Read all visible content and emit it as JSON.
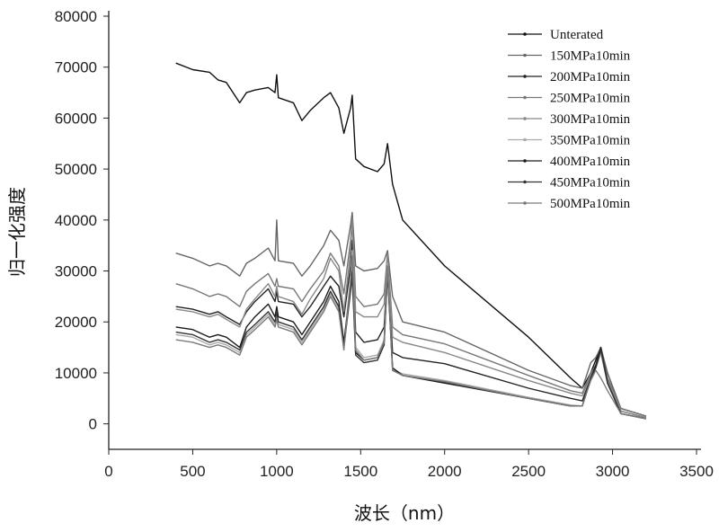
{
  "chart_data": {
    "type": "line",
    "title": "",
    "xlabel": "波长（nm）",
    "ylabel": "归一化强度",
    "xlim": [
      0,
      3500
    ],
    "ylim": [
      -5000,
      80000
    ],
    "xticks": [
      0,
      500,
      1000,
      1500,
      2000,
      2500,
      3000,
      3500
    ],
    "yticks": [
      0,
      10000,
      20000,
      30000,
      40000,
      50000,
      60000,
      70000,
      80000
    ],
    "grid": false,
    "legend_position": "top-right",
    "x": [
      400,
      500,
      600,
      650,
      700,
      780,
      820,
      870,
      950,
      990,
      1000,
      1010,
      1100,
      1150,
      1200,
      1280,
      1320,
      1370,
      1400,
      1440,
      1450,
      1470,
      1520,
      1600,
      1640,
      1660,
      1690,
      1750,
      2000,
      2500,
      2750,
      2820,
      2870,
      2900,
      2930,
      2970,
      3050,
      3200
    ],
    "series": [
      {
        "name": "Unterated",
        "color": "#111111",
        "values": [
          70800,
          69500,
          69000,
          67500,
          67000,
          63000,
          65000,
          65500,
          66000,
          65000,
          68500,
          64000,
          63000,
          59500,
          61500,
          64000,
          65000,
          62000,
          57000,
          62000,
          64500,
          52000,
          50500,
          49500,
          51000,
          55000,
          47000,
          40000,
          31000,
          17000,
          9000,
          7000,
          10000,
          12500,
          15000,
          9000,
          3000,
          1500
        ]
      },
      {
        "name": "150MPa10min",
        "color": "#666666",
        "values": [
          33500,
          32500,
          31000,
          31500,
          31000,
          29000,
          31500,
          32500,
          34500,
          32000,
          40000,
          32000,
          31500,
          29000,
          31000,
          35000,
          38000,
          36000,
          31000,
          39000,
          41500,
          31000,
          30000,
          30500,
          32000,
          34000,
          25000,
          20000,
          18000,
          10500,
          7500,
          7000,
          12000,
          13000,
          15000,
          10000,
          3000,
          1500
        ]
      },
      {
        "name": "200MPa10min",
        "color": "#222222",
        "values": [
          23000,
          22500,
          21500,
          22000,
          21000,
          19500,
          22000,
          24000,
          26500,
          24000,
          26000,
          24000,
          23500,
          21000,
          23000,
          27000,
          29000,
          27000,
          21000,
          31000,
          36000,
          18000,
          16000,
          16500,
          19000,
          31000,
          14000,
          13000,
          11800,
          7000,
          5000,
          4500,
          9000,
          11000,
          14000,
          8000,
          2500,
          1200
        ]
      },
      {
        "name": "250MPa10min",
        "color": "#777777",
        "values": [
          27500,
          26500,
          25000,
          25500,
          25000,
          23000,
          26000,
          27500,
          29500,
          27000,
          28500,
          27000,
          26500,
          24000,
          26500,
          30000,
          33500,
          31000,
          25500,
          36000,
          40500,
          25000,
          23000,
          23500,
          25500,
          33500,
          19000,
          17500,
          15700,
          9500,
          6500,
          6000,
          10000,
          11500,
          14000,
          9000,
          3000,
          1500
        ]
      },
      {
        "name": "300MPa10min",
        "color": "#888888",
        "values": [
          22500,
          22000,
          21000,
          21500,
          20500,
          19000,
          22500,
          24500,
          27500,
          25000,
          27000,
          25000,
          24000,
          21500,
          24500,
          28500,
          32500,
          30000,
          22000,
          34000,
          40000,
          22000,
          21000,
          21000,
          23500,
          33000,
          17000,
          16000,
          14000,
          8500,
          6000,
          5500,
          9500,
          11500,
          14500,
          8500,
          2500,
          1200
        ]
      },
      {
        "name": "350MPa10min",
        "color": "#aaaaaa",
        "values": [
          17500,
          17000,
          15500,
          16000,
          15500,
          14000,
          17500,
          19000,
          21500,
          19500,
          21500,
          19500,
          18500,
          16000,
          18500,
          22500,
          25500,
          22500,
          15000,
          29000,
          34000,
          15000,
          13000,
          13500,
          16500,
          31500,
          10800,
          9800,
          8500,
          5200,
          3700,
          3500,
          9000,
          11000,
          14000,
          8000,
          2000,
          1000
        ]
      },
      {
        "name": "400MPa10min",
        "color": "#1a1a1a",
        "values": [
          19000,
          18500,
          17000,
          17500,
          17000,
          15000,
          19000,
          21000,
          23500,
          21000,
          23000,
          21000,
          20000,
          17500,
          20000,
          24000,
          27000,
          24000,
          16000,
          27000,
          30000,
          14000,
          12500,
          13000,
          16000,
          30000,
          11000,
          9500,
          8000,
          5000,
          3500,
          3500,
          9000,
          11500,
          15000,
          8000,
          2000,
          1000
        ]
      },
      {
        "name": "450MPa10min",
        "color": "#333333",
        "values": [
          18000,
          17500,
          16000,
          16500,
          16000,
          14500,
          18000,
          19500,
          22000,
          20000,
          22000,
          20000,
          19000,
          16500,
          19000,
          23000,
          26000,
          23000,
          15000,
          26000,
          29000,
          13500,
          12000,
          12500,
          15500,
          29500,
          10500,
          9500,
          8200,
          5000,
          3500,
          3500,
          9000,
          11000,
          14500,
          8000,
          2000,
          1000
        ]
      },
      {
        "name": "500MPa10min",
        "color": "#7a7a7a",
        "values": [
          16500,
          16000,
          15000,
          15500,
          15000,
          13500,
          17000,
          18500,
          21000,
          19000,
          20500,
          19000,
          18000,
          15500,
          18000,
          22000,
          25000,
          22000,
          14500,
          28000,
          33000,
          14500,
          12500,
          13000,
          16000,
          31000,
          10500,
          9500,
          8300,
          5000,
          3500,
          3500,
          8500,
          10500,
          9000,
          6500,
          2000,
          1000
        ]
      }
    ]
  }
}
